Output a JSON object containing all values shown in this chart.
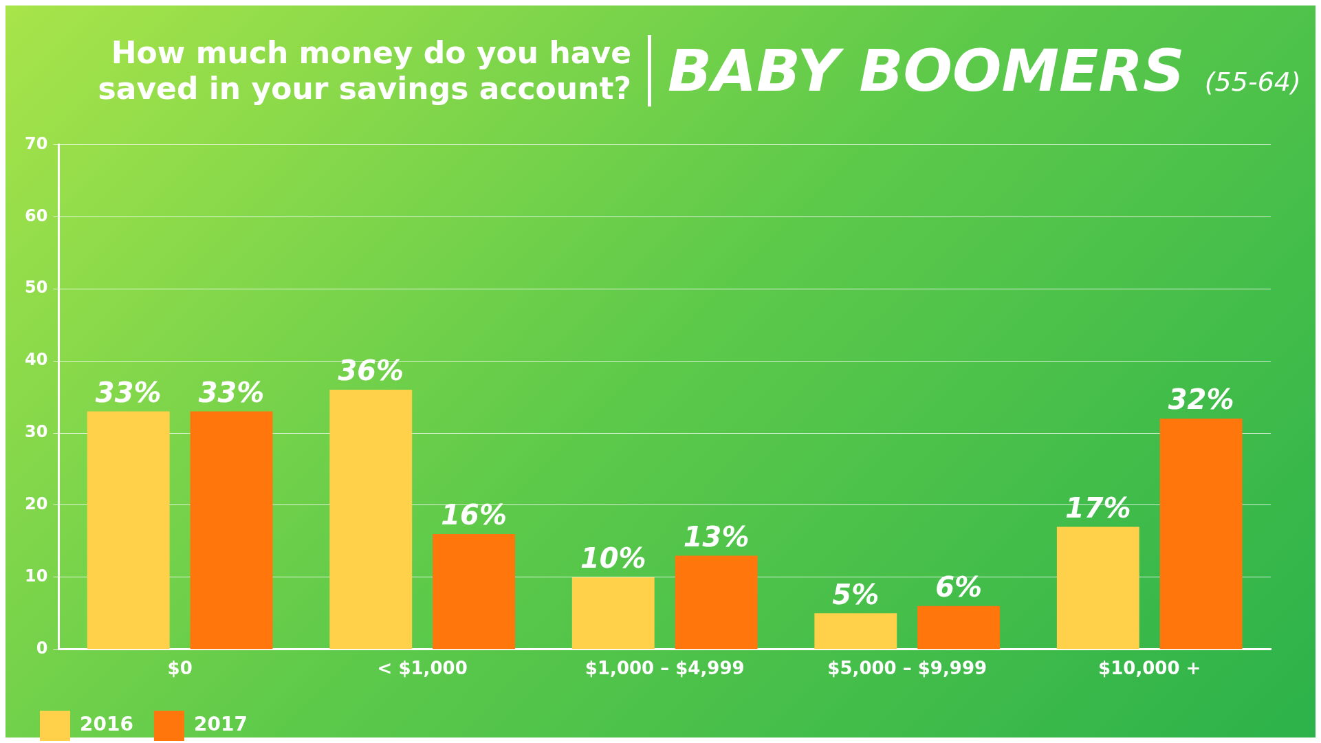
{
  "chart_data": {
    "type": "bar",
    "title": "How much money do you have saved in your savings account?",
    "subtitle": "BABY BOOMERS (55-64)",
    "categories": [
      "$0",
      "< $1,000",
      "$1,000 – $4,999",
      "$5,000 – $9,999",
      "$10,000 +"
    ],
    "series": [
      {
        "name": "2016",
        "color": "#ffd04a",
        "values": [
          33,
          36,
          10,
          5,
          17
        ],
        "value_labels": [
          "33%",
          "36%",
          "10%",
          "5%",
          "17%"
        ]
      },
      {
        "name": "2017",
        "color": "#ff760d",
        "values": [
          33,
          16,
          13,
          6,
          32
        ],
        "value_labels": [
          "33%",
          "16%",
          "13%",
          "6%",
          "32%"
        ]
      }
    ],
    "ylim": [
      0,
      70
    ],
    "yticks": [
      0,
      10,
      20,
      30,
      40,
      50,
      60,
      70
    ],
    "grid": "y",
    "legend": "bottom left"
  }
}
